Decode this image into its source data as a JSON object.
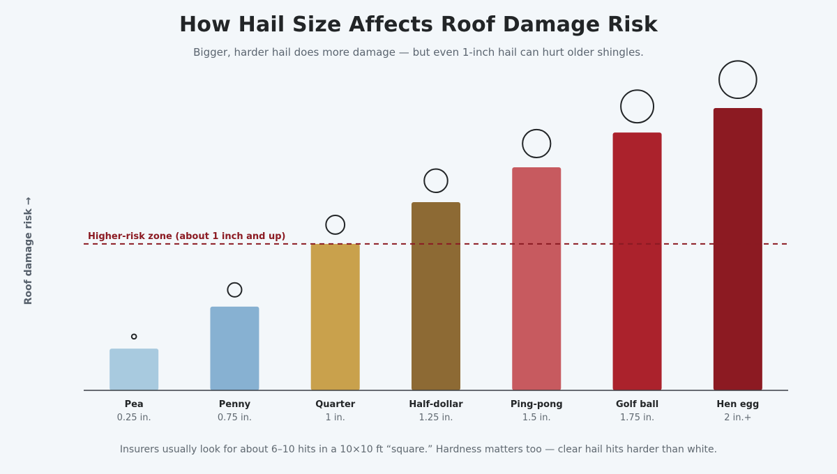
{
  "chart_data": {
    "type": "bar",
    "title": "How Hail Size Affects Roof Damage Risk",
    "subtitle": "Bigger, harder hail does more damage — but even 1-inch hail can hurt older shingles.",
    "ylabel": "Roof damage risk →",
    "xlabel": "",
    "ylim": [
      0,
      100
    ],
    "grid": false,
    "categories": [
      "Pea",
      "Penny",
      "Quarter",
      "Half-dollar",
      "Ping-pong",
      "Golf ball",
      "Hen egg"
    ],
    "size_labels": [
      "0.25 in.",
      "0.75 in.",
      "1 in.",
      "1.25 in.",
      "1.5 in.",
      "1.75 in.",
      "2 in.+"
    ],
    "hail_diameters_in": [
      0.25,
      0.75,
      1,
      1.25,
      1.5,
      1.75,
      2
    ],
    "values": [
      13.3,
      26.7,
      46.7,
      60,
      71.1,
      82.2,
      90
    ],
    "bar_colors": [
      "#a8cadf",
      "#87b1d2",
      "#c9a14c",
      "#8d6a34",
      "#c75a5f",
      "#ab222c",
      "#8c1a22"
    ],
    "threshold": {
      "value": 46.7,
      "label": "Higher-risk zone (about 1 inch and up)",
      "color": "#8b1a22"
    },
    "footnote": "Insurers usually look for about 6–10 hits in a 10×10 ft “square.” Hardness matters too — clear hail hits harder than white."
  }
}
